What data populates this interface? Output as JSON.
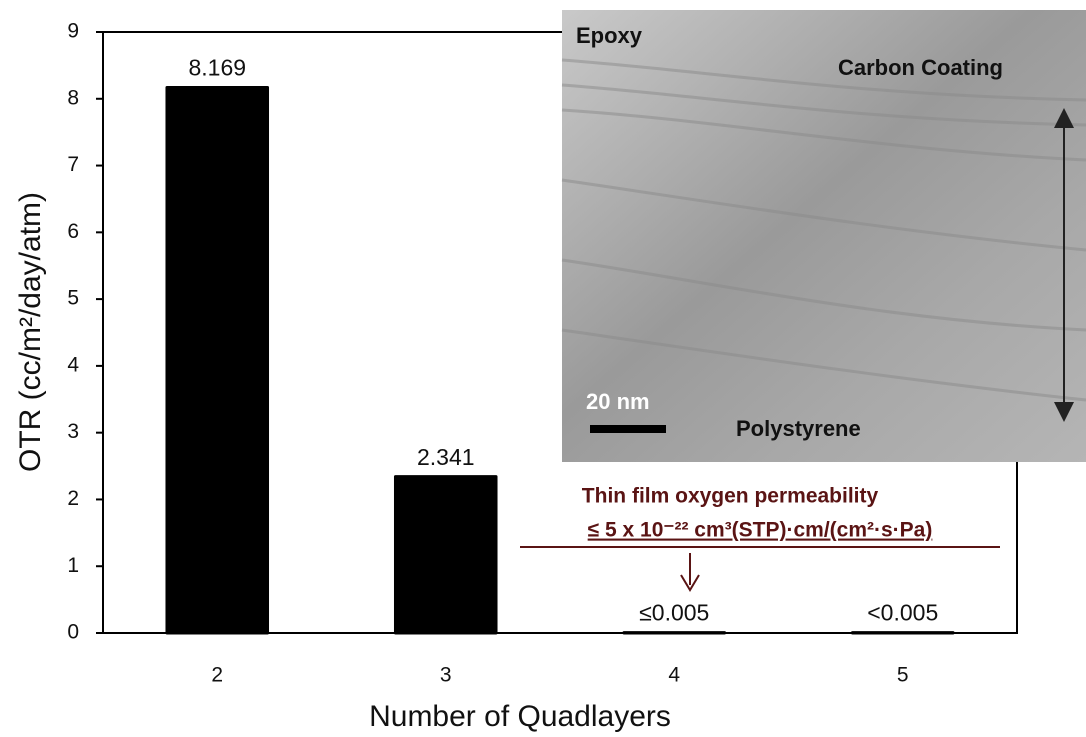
{
  "chart_data": {
    "type": "bar",
    "x_label": "Number of Quadlayers",
    "y_label": "OTR (cc/m²/day/atm)",
    "categories": [
      "2",
      "3",
      "4",
      "5"
    ],
    "values": [
      8.169,
      2.341,
      0.005,
      0.005
    ],
    "value_labels": [
      "8.169",
      "2.341",
      "≤0.005",
      "<0.005"
    ],
    "color": "#000000",
    "ylim": [
      0,
      9
    ],
    "yticks": [
      0,
      1,
      2,
      3,
      4,
      5,
      6,
      7,
      8,
      9
    ],
    "annotation": {
      "lines": [
        "Thin film oxygen permeability",
        "≤ 5 x 10⁻²² cm³(STP)·cm/(cm²·s·Pa)"
      ],
      "color": "#5a1414"
    },
    "inset_labels": {
      "top_left": "Epoxy",
      "top_right": "Carbon Coating",
      "scale_bar": "20 nm",
      "bottom": "Polystyrene"
    }
  }
}
